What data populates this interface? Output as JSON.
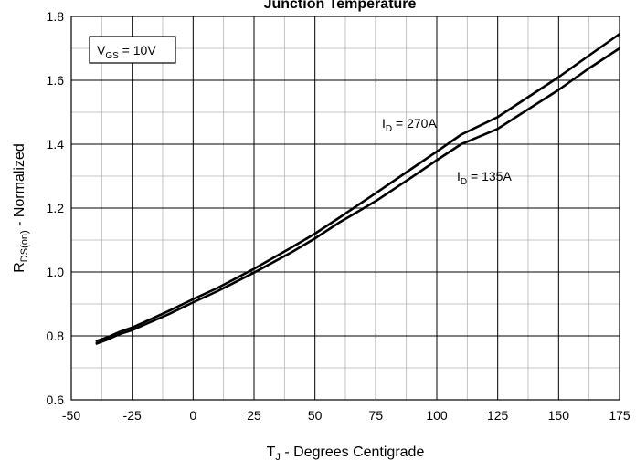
{
  "chart_data": {
    "type": "line",
    "title": "Junction Temperature",
    "xlabel": {
      "main": "T",
      "sub": "J",
      "rest": " - Degrees Centigrade"
    },
    "ylabel": {
      "main": "R",
      "sub": "DS(on)",
      "rest": " - Normalized"
    },
    "xlim": [
      -50,
      175
    ],
    "ylim": [
      0.6,
      1.8
    ],
    "x_major_ticks": [
      -50,
      -25,
      0,
      25,
      50,
      75,
      100,
      125,
      150,
      175
    ],
    "x_tick_labels": [
      "-50",
      "-25",
      "0",
      "25",
      "50",
      "75",
      "100",
      "125",
      "150",
      "175"
    ],
    "y_major_ticks": [
      0.6,
      0.8,
      1.0,
      1.2,
      1.4,
      1.6,
      1.8
    ],
    "y_tick_labels": [
      "0.6",
      "0.8",
      "1.0",
      "1.2",
      "1.4",
      "1.6",
      "1.8"
    ],
    "x_minor_step": 12.5,
    "y_minor_step": 0.1,
    "grid": true,
    "series": [
      {
        "name": "I_D = 270A",
        "x": [
          -40,
          -35,
          -30,
          -25,
          -20,
          -10,
          0,
          10,
          25,
          40,
          50,
          60,
          75,
          90,
          100,
          110,
          125,
          137,
          150,
          162,
          175
        ],
        "y": [
          0.783,
          0.796,
          0.813,
          0.826,
          0.843,
          0.878,
          0.915,
          0.95,
          1.01,
          1.075,
          1.12,
          1.17,
          1.247,
          1.325,
          1.377,
          1.43,
          1.485,
          1.545,
          1.61,
          1.675,
          1.745
        ]
      },
      {
        "name": "I_D = 135A",
        "x": [
          -40,
          -35,
          -30,
          -25,
          -20,
          -10,
          0,
          10,
          25,
          40,
          50,
          60,
          75,
          90,
          100,
          110,
          125,
          137,
          150,
          162,
          175
        ],
        "y": [
          0.775,
          0.789,
          0.806,
          0.818,
          0.835,
          0.868,
          0.905,
          0.94,
          0.998,
          1.06,
          1.105,
          1.155,
          1.222,
          1.298,
          1.35,
          1.4,
          1.448,
          1.507,
          1.57,
          1.635,
          1.7
        ]
      }
    ],
    "annotations": [
      {
        "id": "vgs",
        "main": "V",
        "sub": "GS",
        "rest": " = 10V",
        "boxed": true
      },
      {
        "id": "id270",
        "main": "I",
        "sub": "D",
        "rest": " = 270A",
        "series": 0
      },
      {
        "id": "id135",
        "main": "I",
        "sub": "D",
        "rest": " = 135A",
        "series": 1
      }
    ]
  }
}
